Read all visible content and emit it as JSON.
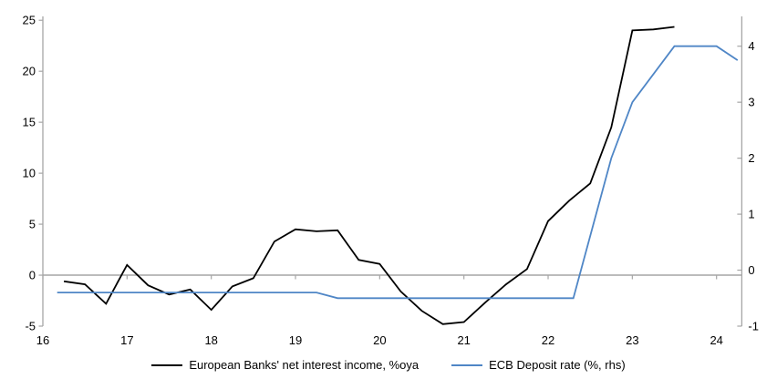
{
  "figure": {
    "background": "#ffffff",
    "text_color": "#000000"
  },
  "chart_data": {
    "type": "line",
    "title": "",
    "xlabel": "",
    "ylabel_left": "",
    "ylabel_right": "",
    "grid": "zero-line-only",
    "legend_position": "bottom-center",
    "axis_color": "#a6a6a6",
    "x_axis": {
      "ticks": [
        16,
        17,
        18,
        19,
        20,
        21,
        22,
        23,
        24
      ],
      "range": [
        16,
        24.3
      ]
    },
    "y_left": {
      "ticks": [
        -5,
        0,
        5,
        10,
        15,
        20,
        25
      ],
      "range": [
        -5,
        25.2
      ]
    },
    "y_right": {
      "ticks": [
        -1,
        0,
        1,
        2,
        3,
        4
      ],
      "range": [
        -1,
        4.5
      ]
    },
    "series": [
      {
        "id": "european-banks-nii",
        "name": "European Banks' net interest income, %oya",
        "axis": "left",
        "color": "#000000",
        "points": [
          [
            16.25,
            -0.6
          ],
          [
            16.5,
            -0.9
          ],
          [
            16.75,
            -2.8
          ],
          [
            17.0,
            1.0
          ],
          [
            17.25,
            -1.0
          ],
          [
            17.5,
            -1.9
          ],
          [
            17.75,
            -1.4
          ],
          [
            18.0,
            -3.4
          ],
          [
            18.25,
            -1.1
          ],
          [
            18.5,
            -0.3
          ],
          [
            18.75,
            3.3
          ],
          [
            19.0,
            4.5
          ],
          [
            19.25,
            4.3
          ],
          [
            19.5,
            4.4
          ],
          [
            19.75,
            1.5
          ],
          [
            20.0,
            1.1
          ],
          [
            20.25,
            -1.6
          ],
          [
            20.5,
            -3.5
          ],
          [
            20.75,
            -4.8
          ],
          [
            21.0,
            -4.6
          ],
          [
            21.25,
            -2.7
          ],
          [
            21.5,
            -0.9
          ],
          [
            21.75,
            0.6
          ],
          [
            22.0,
            5.3
          ],
          [
            22.25,
            7.3
          ],
          [
            22.5,
            9.0
          ],
          [
            22.75,
            14.5
          ],
          [
            23.0,
            24.0
          ],
          [
            23.25,
            24.1
          ],
          [
            23.5,
            24.35
          ]
        ]
      },
      {
        "id": "ecb-deposit-rate",
        "name": "ECB Deposit rate (%, rhs)",
        "axis": "right",
        "color": "#4f86c6",
        "points": [
          [
            16.17,
            -0.4
          ],
          [
            19.25,
            -0.4
          ],
          [
            19.5,
            -0.5
          ],
          [
            22.3,
            -0.5
          ],
          [
            22.75,
            2.0
          ],
          [
            23.0,
            3.0
          ],
          [
            23.5,
            4.0
          ],
          [
            24.0,
            4.0
          ],
          [
            24.25,
            3.75
          ]
        ]
      }
    ]
  }
}
